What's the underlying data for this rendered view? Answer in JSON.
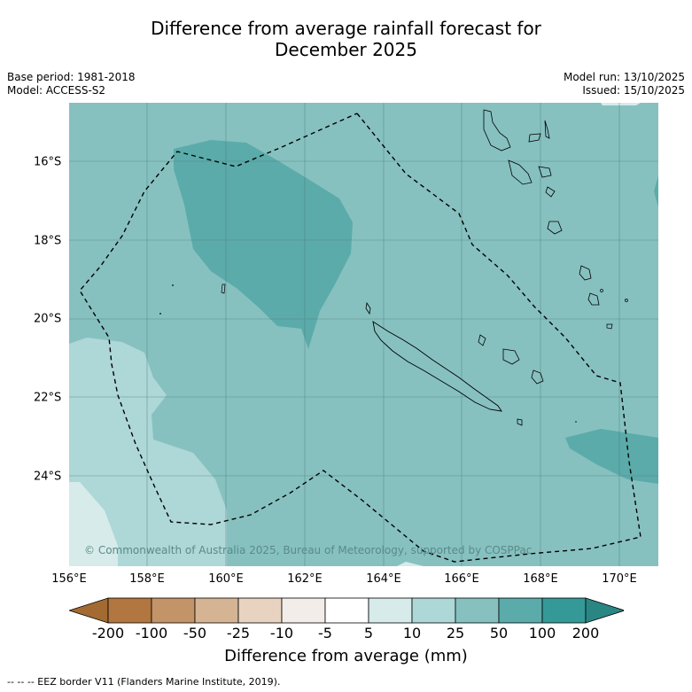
{
  "title_line1": "Difference from average rainfall forecast for",
  "title_line2": "December 2025",
  "meta": {
    "base_period": "Base period: 1981-2018",
    "model": "Model: ACCESS-S2",
    "model_run": "Model run: 13/10/2025",
    "issued": "Issued: 15/10/2025"
  },
  "map": {
    "x_ticks": [
      "156°E",
      "158°E",
      "160°E",
      "162°E",
      "164°E",
      "166°E",
      "168°E",
      "170°E"
    ],
    "y_ticks": [
      "16°S",
      "18°S",
      "20°S",
      "22°S",
      "24°S"
    ],
    "copyright": "© Commonwealth of Australia 2025, Bureau of Meteorology, supported by COSPPac"
  },
  "colorbar": {
    "title": "Difference from average (mm)",
    "labels": [
      "-200",
      "-100",
      "-50",
      "-25",
      "-10",
      "-5",
      "5",
      "10",
      "25",
      "50",
      "100",
      "200"
    ],
    "colors": [
      "#a36a31",
      "#b27740",
      "#c39468",
      "#d5b494",
      "#e7d3c0",
      "#f2ede9",
      "#ffffff",
      "#d6ebea",
      "#aed7d7",
      "#86c1c0",
      "#5babaa",
      "#359998",
      "#2a8683"
    ]
  },
  "footer": "--  --  -- EEZ border V11 (Flanders Marine Institute, 2019)."
}
